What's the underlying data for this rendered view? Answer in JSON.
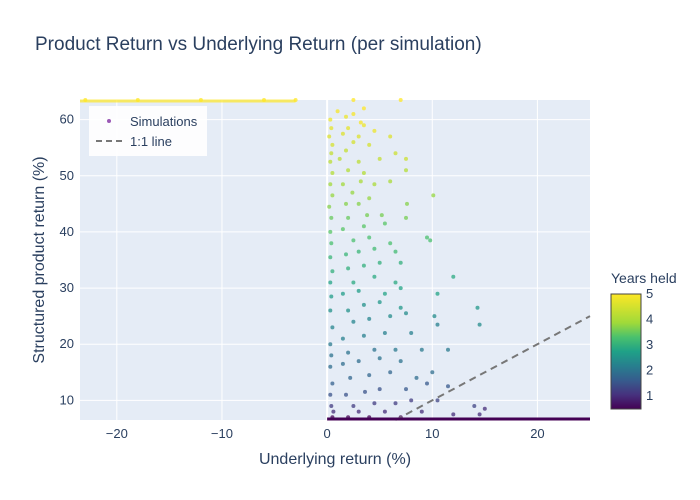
{
  "chart_data": {
    "type": "scatter",
    "title": "Product Return vs Underlying Return (per simulation)",
    "xlabel": "Underlying return (%)",
    "ylabel": "Structured product return (%)",
    "xlim": [
      -23.5,
      25
    ],
    "ylim": [
      6.5,
      63.5
    ],
    "x_ticks": [
      -20,
      -10,
      0,
      10,
      20
    ],
    "y_ticks": [
      10,
      20,
      30,
      40,
      50,
      60
    ],
    "grid": true,
    "legend": {
      "placement": "top-left",
      "entries": [
        "Simulations",
        "1:1 line"
      ]
    },
    "colorbar": {
      "title": "Years held",
      "range": [
        0.5,
        5
      ],
      "ticks": [
        1,
        2,
        3,
        4,
        5
      ],
      "colorscale": "viridis"
    },
    "series": [
      {
        "name": "Simulations",
        "kind": "markers",
        "color_by": "years_held",
        "points": [
          [
            0.5,
            7.0,
            0.5
          ],
          [
            2.0,
            7.0,
            0.5
          ],
          [
            4.0,
            7.0,
            0.5
          ],
          [
            7.0,
            7.0,
            0.5
          ],
          [
            0.6,
            8.0,
            1.0
          ],
          [
            3.0,
            8.0,
            1.0
          ],
          [
            5.5,
            8.0,
            1.0
          ],
          [
            9.0,
            8.0,
            1.0
          ],
          [
            12.0,
            7.5,
            1.0
          ],
          [
            14.5,
            7.5,
            1.0
          ],
          [
            15.0,
            8.5,
            1.0
          ],
          [
            0.4,
            9.0,
            1.2
          ],
          [
            2.5,
            9.0,
            1.2
          ],
          [
            4.5,
            9.5,
            1.2
          ],
          [
            6.5,
            9.5,
            1.2
          ],
          [
            8.0,
            10.0,
            1.2
          ],
          [
            10.5,
            10.0,
            1.3
          ],
          [
            14.0,
            9.0,
            1.3
          ],
          [
            0.3,
            11.0,
            1.5
          ],
          [
            1.8,
            11.0,
            1.5
          ],
          [
            3.6,
            11.5,
            1.5
          ],
          [
            5.0,
            12.0,
            1.5
          ],
          [
            7.5,
            12.0,
            1.6
          ],
          [
            9.5,
            13.0,
            1.6
          ],
          [
            11.5,
            12.5,
            1.6
          ],
          [
            0.5,
            13.0,
            1.7
          ],
          [
            2.2,
            14.0,
            1.8
          ],
          [
            4.0,
            14.5,
            1.8
          ],
          [
            6.0,
            15.0,
            1.8
          ],
          [
            8.5,
            14.0,
            1.9
          ],
          [
            10.0,
            15.0,
            1.9
          ],
          [
            0.3,
            16.0,
            1.9
          ],
          [
            1.5,
            16.5,
            1.9
          ],
          [
            3.0,
            17.0,
            1.9
          ],
          [
            5.0,
            17.5,
            2.0
          ],
          [
            7.0,
            17.0,
            2.0
          ],
          [
            0.4,
            18.0,
            2.0
          ],
          [
            2.0,
            18.5,
            2.0
          ],
          [
            4.5,
            19.0,
            2.0
          ],
          [
            6.5,
            19.0,
            2.1
          ],
          [
            9.0,
            19.0,
            2.1
          ],
          [
            11.5,
            19.0,
            2.1
          ],
          [
            0.3,
            20.0,
            2.1
          ],
          [
            1.5,
            21.0,
            2.2
          ],
          [
            3.5,
            21.5,
            2.2
          ],
          [
            5.5,
            22.0,
            2.2
          ],
          [
            8.0,
            22.0,
            2.2
          ],
          [
            10.5,
            23.5,
            2.2
          ],
          [
            0.5,
            23.0,
            2.3
          ],
          [
            2.5,
            24.0,
            2.3
          ],
          [
            4.0,
            24.5,
            2.3
          ],
          [
            6.0,
            25.0,
            2.4
          ],
          [
            7.5,
            25.5,
            2.4
          ],
          [
            10.2,
            25.0,
            2.4
          ],
          [
            14.5,
            23.5,
            2.4
          ],
          [
            0.3,
            26.0,
            2.5
          ],
          [
            2.0,
            26.0,
            2.5
          ],
          [
            3.5,
            27.0,
            2.5
          ],
          [
            5.0,
            27.5,
            2.6
          ],
          [
            7.0,
            26.5,
            2.6
          ],
          [
            14.3,
            26.5,
            2.6
          ],
          [
            0.4,
            28.5,
            2.7
          ],
          [
            1.5,
            29.0,
            2.7
          ],
          [
            3.0,
            29.5,
            2.7
          ],
          [
            5.5,
            29.0,
            2.8
          ],
          [
            7.0,
            30.0,
            2.8
          ],
          [
            10.5,
            29.0,
            2.8
          ],
          [
            0.3,
            31.0,
            2.8
          ],
          [
            2.5,
            31.0,
            2.9
          ],
          [
            4.5,
            32.0,
            2.9
          ],
          [
            6.5,
            31.0,
            2.9
          ],
          [
            12.0,
            32.0,
            2.9
          ],
          [
            0.5,
            33.0,
            3.0
          ],
          [
            2.0,
            33.5,
            3.0
          ],
          [
            3.5,
            34.0,
            3.0
          ],
          [
            5.0,
            34.5,
            3.0
          ],
          [
            7.0,
            34.5,
            3.0
          ],
          [
            0.3,
            35.5,
            3.1
          ],
          [
            1.8,
            36.0,
            3.1
          ],
          [
            3.0,
            36.5,
            3.1
          ],
          [
            4.5,
            37.0,
            3.2
          ],
          [
            6.5,
            36.5,
            3.2
          ],
          [
            0.4,
            38.0,
            3.3
          ],
          [
            2.5,
            38.5,
            3.3
          ],
          [
            4.0,
            39.0,
            3.3
          ],
          [
            6.0,
            38.0,
            3.3
          ],
          [
            9.5,
            39.0,
            3.3
          ],
          [
            9.8,
            38.5,
            3.3
          ],
          [
            0.3,
            40.0,
            3.4
          ],
          [
            1.5,
            40.5,
            3.4
          ],
          [
            3.5,
            41.0,
            3.4
          ],
          [
            5.5,
            41.5,
            3.4
          ],
          [
            0.4,
            42.5,
            3.5
          ],
          [
            2.0,
            42.5,
            3.5
          ],
          [
            3.8,
            43.0,
            3.6
          ],
          [
            5.2,
            43.0,
            3.6
          ],
          [
            7.5,
            42.5,
            3.6
          ],
          [
            0.2,
            44.5,
            3.7
          ],
          [
            1.8,
            45.0,
            3.7
          ],
          [
            3.0,
            45.0,
            3.7
          ],
          [
            7.6,
            45.0,
            3.7
          ],
          [
            0.5,
            46.5,
            3.8
          ],
          [
            2.4,
            47.0,
            3.8
          ],
          [
            4.0,
            46.0,
            3.8
          ],
          [
            10.1,
            46.5,
            3.8
          ],
          [
            0.3,
            48.5,
            3.9
          ],
          [
            1.5,
            48.5,
            3.9
          ],
          [
            3.2,
            49.0,
            4.0
          ],
          [
            4.5,
            48.5,
            4.0
          ],
          [
            6.0,
            49.0,
            4.0
          ],
          [
            0.5,
            50.5,
            4.1
          ],
          [
            2.0,
            51.0,
            4.1
          ],
          [
            3.5,
            50.5,
            4.1
          ],
          [
            7.5,
            51.0,
            4.1
          ],
          [
            0.3,
            52.5,
            4.2
          ],
          [
            1.2,
            53.0,
            4.2
          ],
          [
            3.0,
            52.5,
            4.2
          ],
          [
            5.0,
            53.0,
            4.3
          ],
          [
            0.4,
            54.0,
            4.3
          ],
          [
            1.8,
            54.5,
            4.3
          ],
          [
            6.5,
            54.0,
            4.4
          ],
          [
            7.5,
            53.0,
            4.4
          ],
          [
            0.5,
            55.5,
            4.5
          ],
          [
            2.5,
            56.0,
            4.5
          ],
          [
            4.0,
            55.5,
            4.5
          ],
          [
            0.2,
            57.0,
            4.6
          ],
          [
            1.5,
            57.5,
            4.6
          ],
          [
            3.0,
            57.0,
            4.6
          ],
          [
            6.0,
            57.0,
            4.6
          ],
          [
            0.4,
            58.5,
            4.7
          ],
          [
            2.0,
            58.5,
            4.7
          ],
          [
            3.5,
            59.0,
            4.8
          ],
          [
            4.5,
            58.0,
            4.8
          ],
          [
            0.3,
            60.0,
            4.8
          ],
          [
            1.8,
            60.5,
            4.8
          ],
          [
            3.2,
            59.5,
            4.9
          ],
          [
            1.0,
            61.5,
            4.9
          ],
          [
            2.5,
            61.0,
            4.9
          ],
          [
            3.5,
            62.0,
            5.0
          ],
          [
            -23.0,
            63.5,
            5.0
          ],
          [
            -18.0,
            63.5,
            5.0
          ],
          [
            -12.0,
            63.5,
            5.0
          ],
          [
            -6.0,
            63.5,
            5.0
          ],
          [
            -3.0,
            63.5,
            5.0
          ],
          [
            2.5,
            63.5,
            5.0
          ],
          [
            7.0,
            63.5,
            5.0
          ]
        ]
      },
      {
        "name": "1:1 line",
        "kind": "dashed-line",
        "color": "#777777",
        "x": [
          6.5,
          25
        ],
        "y": [
          6.5,
          25
        ]
      }
    ]
  }
}
